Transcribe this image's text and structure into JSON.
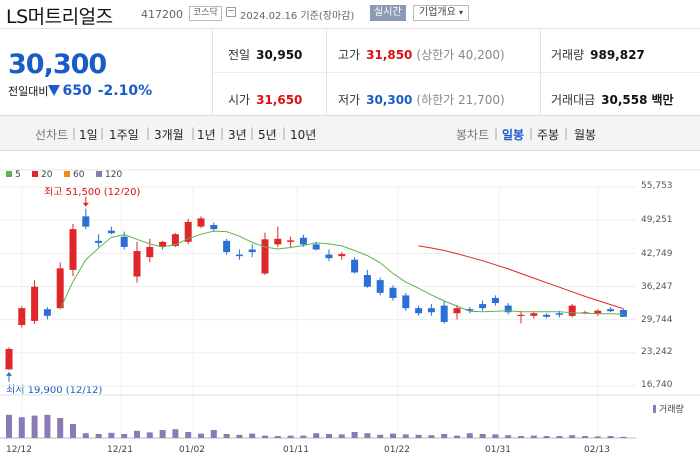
{
  "header": {
    "company": "LS머트리얼즈",
    "code": "417200",
    "market": "코스닥",
    "date": "2024.02.16",
    "basis": "기준(장마감)",
    "realtime_button": "실시간",
    "company_info_button": "기업개요",
    "company_info_arrow": "▾"
  },
  "quote": {
    "price": "30,300",
    "change_label": "전일대비",
    "change_amount": "650",
    "change_percent": "-2.10%",
    "prev_close_label": "전일",
    "prev_close": "30,950",
    "high_label": "고가",
    "high": "31,850",
    "upper_limit": "(상한가 40,200)",
    "volume_label": "거래량",
    "volume": "989,827",
    "open_label": "시가",
    "open": "31,650",
    "low_label": "저가",
    "low": "30,300",
    "lower_limit": "(하한가 21,700)",
    "amount_label": "거래대금",
    "amount": "30,558",
    "amount_unit": "백만"
  },
  "tabs": {
    "line_chart": "선차트",
    "periods": [
      "1일",
      "1주일",
      "3개월",
      "1년",
      "3년",
      "5년",
      "10년"
    ],
    "candle_chart": "봉차트",
    "candle_periods": [
      "일봉",
      "주봉",
      "월봉"
    ]
  },
  "colors": {
    "up": "#e0262a",
    "down": "#2a6fd6",
    "ma5": "#5fb34a",
    "ma20": "#e0262a",
    "ma60": "#f08a1c",
    "ma120": "#8a7ab8",
    "volume": "#8a7ab8"
  },
  "chart_data": {
    "type": "candlestick",
    "legend": [
      "5",
      "20",
      "60",
      "120"
    ],
    "y_ticks": [
      "55,753",
      "49,251",
      "42,749",
      "36,247",
      "29,744",
      "23,242",
      "16,740"
    ],
    "ylim": [
      16740,
      55753
    ],
    "x_ticks": [
      "12/12",
      "12/21",
      "01/02",
      "01/11",
      "01/22",
      "01/31",
      "02/13"
    ],
    "high_note": "최고 51,500 (12/20)",
    "low_note": "최저 19,900 (12/12)",
    "volume_label": "거래량",
    "candles": [
      {
        "o": 20000,
        "h": 24300,
        "l": 19900,
        "c": 24000
      },
      {
        "o": 28700,
        "h": 32400,
        "l": 28200,
        "c": 32000
      },
      {
        "o": 29500,
        "h": 37500,
        "l": 28900,
        "c": 36200
      },
      {
        "o": 31800,
        "h": 32200,
        "l": 29800,
        "c": 30500
      },
      {
        "o": 32000,
        "h": 41000,
        "l": 31800,
        "c": 39800
      },
      {
        "o": 39500,
        "h": 48500,
        "l": 38300,
        "c": 47500
      },
      {
        "o": 50000,
        "h": 51500,
        "l": 47500,
        "c": 48000
      },
      {
        "o": 45200,
        "h": 46500,
        "l": 44000,
        "c": 44800
      },
      {
        "o": 47200,
        "h": 48000,
        "l": 46500,
        "c": 46700
      },
      {
        "o": 46000,
        "h": 47000,
        "l": 43500,
        "c": 44000
      },
      {
        "o": 38200,
        "h": 45000,
        "l": 37000,
        "c": 43200
      },
      {
        "o": 42000,
        "h": 45600,
        "l": 41000,
        "c": 44000
      },
      {
        "o": 44000,
        "h": 45200,
        "l": 43500,
        "c": 45000
      },
      {
        "o": 44200,
        "h": 46700,
        "l": 44000,
        "c": 46500
      },
      {
        "o": 45000,
        "h": 49500,
        "l": 44500,
        "c": 48900
      },
      {
        "o": 48000,
        "h": 50000,
        "l": 47700,
        "c": 49600
      },
      {
        "o": 48300,
        "h": 48800,
        "l": 47000,
        "c": 47500
      },
      {
        "o": 45200,
        "h": 45600,
        "l": 42500,
        "c": 43000
      },
      {
        "o": 42500,
        "h": 43500,
        "l": 41500,
        "c": 42200
      },
      {
        "o": 43500,
        "h": 44500,
        "l": 42000,
        "c": 43000
      },
      {
        "o": 38800,
        "h": 46800,
        "l": 38500,
        "c": 45500
      },
      {
        "o": 44500,
        "h": 48000,
        "l": 44000,
        "c": 45600
      },
      {
        "o": 45000,
        "h": 46000,
        "l": 44000,
        "c": 45300
      },
      {
        "o": 45800,
        "h": 46400,
        "l": 44000,
        "c": 44500
      },
      {
        "o": 44500,
        "h": 45000,
        "l": 43300,
        "c": 43500
      },
      {
        "o": 42500,
        "h": 43500,
        "l": 41200,
        "c": 41800
      },
      {
        "o": 42200,
        "h": 43000,
        "l": 41500,
        "c": 42600
      },
      {
        "o": 41500,
        "h": 42000,
        "l": 38800,
        "c": 39000
      },
      {
        "o": 38500,
        "h": 39500,
        "l": 36000,
        "c": 36200
      },
      {
        "o": 37500,
        "h": 38000,
        "l": 34500,
        "c": 35000
      },
      {
        "o": 36000,
        "h": 36500,
        "l": 33500,
        "c": 34000
      },
      {
        "o": 34500,
        "h": 35000,
        "l": 31500,
        "c": 32000
      },
      {
        "o": 32000,
        "h": 32500,
        "l": 30500,
        "c": 31000
      },
      {
        "o": 32000,
        "h": 32800,
        "l": 30500,
        "c": 31200
      },
      {
        "o": 32500,
        "h": 33500,
        "l": 29000,
        "c": 29300
      },
      {
        "o": 31000,
        "h": 32600,
        "l": 29800,
        "c": 32000
      },
      {
        "o": 31800,
        "h": 32200,
        "l": 31000,
        "c": 31500
      },
      {
        "o": 32800,
        "h": 33500,
        "l": 31500,
        "c": 32000
      },
      {
        "o": 34000,
        "h": 34500,
        "l": 32500,
        "c": 33000
      },
      {
        "o": 32500,
        "h": 33000,
        "l": 30800,
        "c": 31200
      },
      {
        "o": 30500,
        "h": 31500,
        "l": 29000,
        "c": 30700
      },
      {
        "o": 30500,
        "h": 31200,
        "l": 30000,
        "c": 31000
      },
      {
        "o": 30700,
        "h": 31000,
        "l": 30000,
        "c": 30300
      },
      {
        "o": 31000,
        "h": 31500,
        "l": 30200,
        "c": 30700
      },
      {
        "o": 30500,
        "h": 32800,
        "l": 30200,
        "c": 32500
      },
      {
        "o": 31000,
        "h": 31500,
        "l": 30800,
        "c": 31200
      },
      {
        "o": 31000,
        "h": 31800,
        "l": 30500,
        "c": 31500
      },
      {
        "o": 31800,
        "h": 32200,
        "l": 31200,
        "c": 31400
      },
      {
        "o": 31650,
        "h": 31850,
        "l": 30300,
        "c": 30300
      }
    ],
    "ma5": [
      null,
      null,
      null,
      null,
      31800,
      37200,
      41500,
      43800,
      45900,
      46400,
      45500,
      44600,
      44000,
      44500,
      45600,
      46500,
      47100,
      47000,
      46100,
      44900,
      44000,
      43600,
      43900,
      44300,
      44800,
      44600,
      44200,
      43300,
      42300,
      40900,
      38800,
      37100,
      35900,
      34600,
      33400,
      32400,
      31400,
      31300,
      31400,
      31500,
      31300,
      31300,
      31300,
      31300,
      31100,
      31000,
      30900,
      30900,
      30800
    ],
    "ma20": [
      null,
      null,
      null,
      null,
      null,
      null,
      null,
      null,
      null,
      null,
      null,
      null,
      null,
      null,
      null,
      null,
      null,
      null,
      null,
      null,
      null,
      null,
      null,
      null,
      null,
      null,
      null,
      null,
      null,
      null,
      null,
      null,
      44200,
      43800,
      43300,
      42700,
      42000,
      41300,
      40500,
      39700,
      38800,
      37900,
      37000,
      36100,
      35200,
      34300,
      33500,
      32700,
      31900
    ],
    "volume": [
      0.58,
      0.52,
      0.56,
      0.58,
      0.5,
      0.35,
      0.12,
      0.1,
      0.13,
      0.1,
      0.18,
      0.14,
      0.2,
      0.22,
      0.15,
      0.11,
      0.2,
      0.1,
      0.08,
      0.11,
      0.06,
      0.05,
      0.06,
      0.06,
      0.12,
      0.1,
      0.09,
      0.15,
      0.12,
      0.08,
      0.11,
      0.09,
      0.08,
      0.07,
      0.1,
      0.06,
      0.12,
      0.1,
      0.09,
      0.07,
      0.05,
      0.06,
      0.05,
      0.05,
      0.07,
      0.05,
      0.04,
      0.05,
      0.03
    ]
  }
}
